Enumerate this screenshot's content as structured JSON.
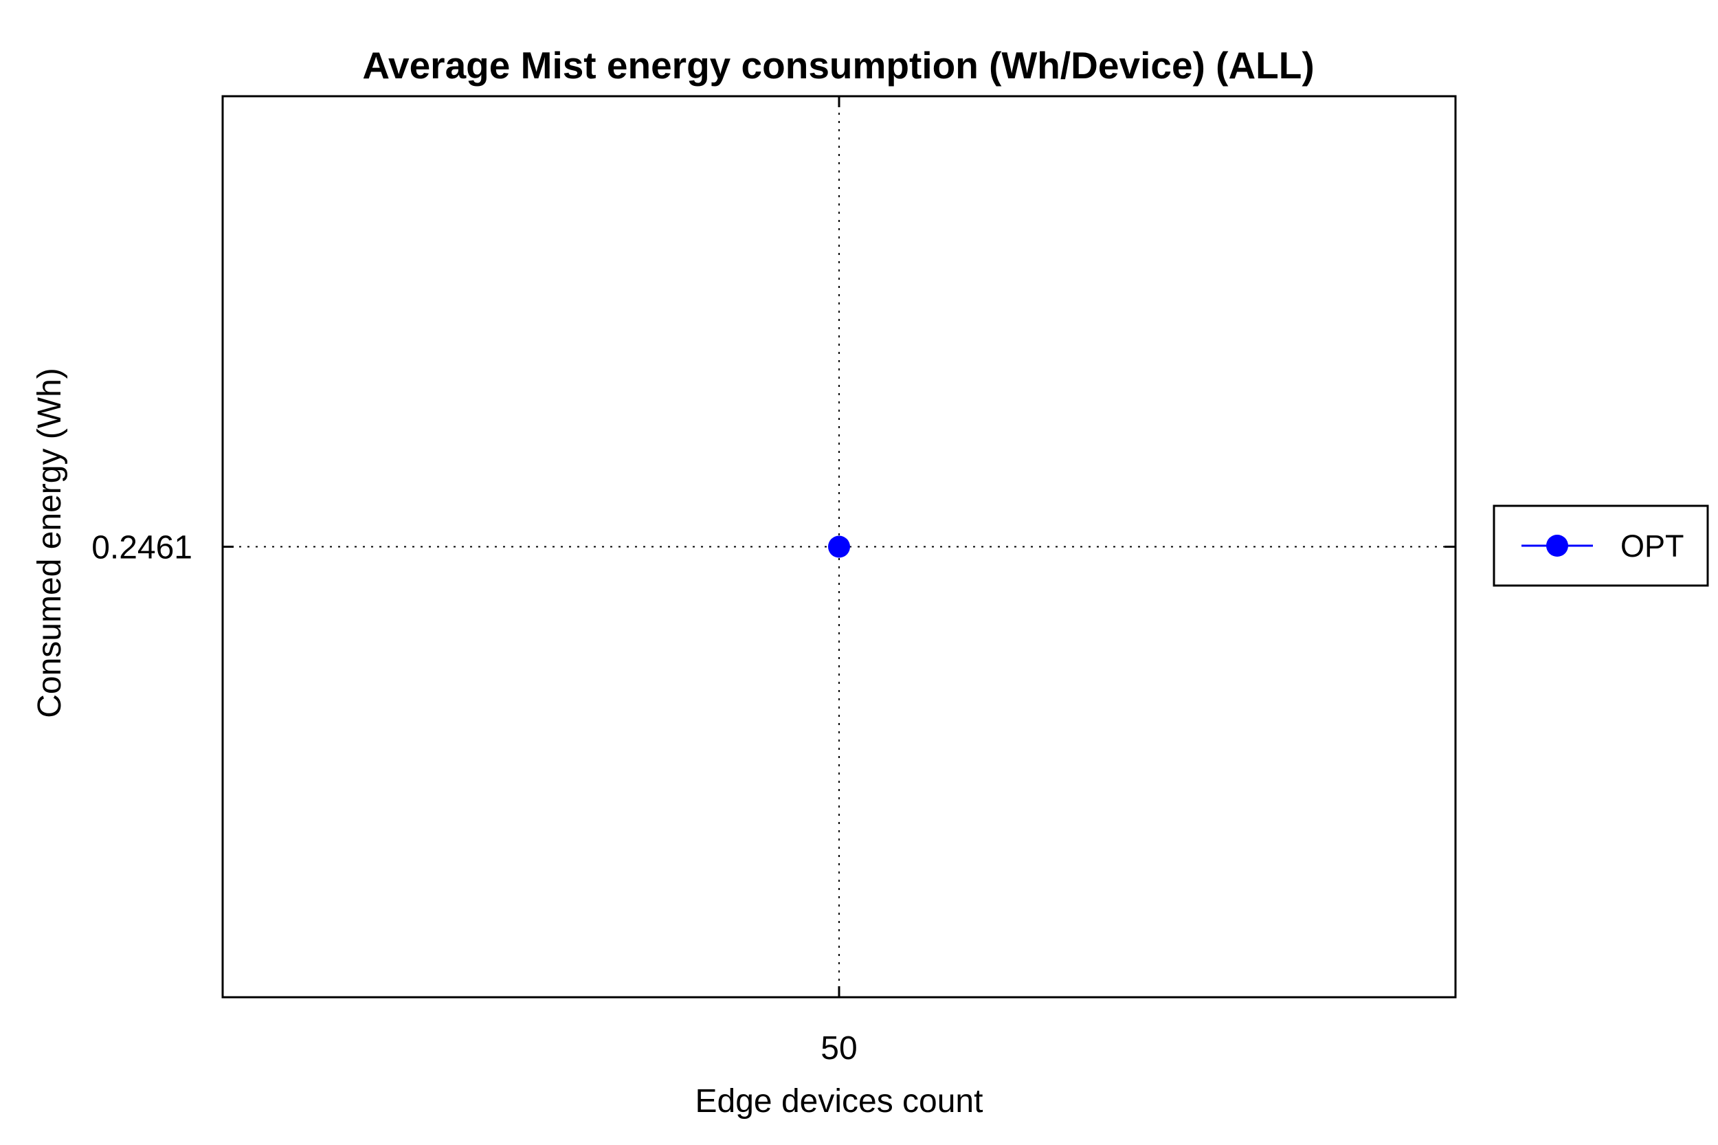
{
  "chart_data": {
    "type": "line",
    "title": "Average Mist energy consumption (Wh/Device) (ALL)",
    "xlabel": "Edge devices count",
    "ylabel": "Consumed energy (Wh)",
    "x": [
      50
    ],
    "x_ticks": [
      "50"
    ],
    "y_ticks": [
      "0.2461"
    ],
    "xlim": [
      49,
      51
    ],
    "ylim": [
      0.2451,
      0.2471
    ],
    "grid": true,
    "legend_position": "outside-right",
    "series": [
      {
        "name": "OPT",
        "values": [
          0.2461
        ],
        "color": "#0000ff",
        "marker": "circle"
      }
    ]
  }
}
